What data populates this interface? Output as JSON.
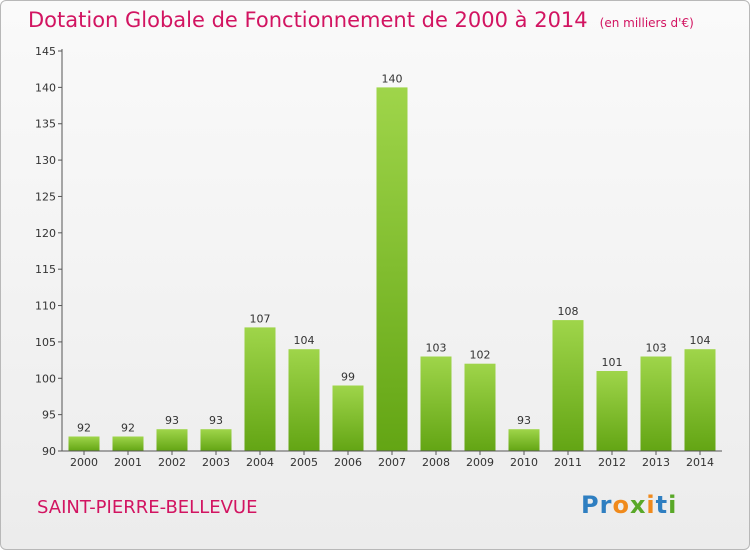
{
  "title": "Dotation Globale de Fonctionnement de 2000 à 2014",
  "unit_note": "(en milliers d'€)",
  "commune": "SAINT-PIERRE-BELLEVUE",
  "logo": "Proxiti",
  "colors": {
    "accent": "#d21461",
    "bar_light": "#9fd54a",
    "bar_dark": "#63a514",
    "logo_letters": [
      "#2f7fc1",
      "#2f7fc1",
      "#f08a1c",
      "#59a828",
      "#f08a1c",
      "#2f7fc1",
      "#59a828"
    ]
  },
  "chart_data": {
    "type": "bar",
    "title": "Dotation Globale de Fonctionnement de 2000 à 2014",
    "xlabel": "",
    "ylabel": "(en milliers d'€)",
    "categories": [
      "2000",
      "2001",
      "2002",
      "2003",
      "2004",
      "2005",
      "2006",
      "2007",
      "2008",
      "2009",
      "2010",
      "2011",
      "2012",
      "2013",
      "2014"
    ],
    "values": [
      92,
      92,
      93,
      93,
      107,
      104,
      99,
      140,
      103,
      102,
      93,
      108,
      101,
      103,
      104
    ],
    "ylim": [
      90,
      145
    ],
    "yticks": [
      90,
      95,
      100,
      105,
      110,
      115,
      120,
      125,
      130,
      135,
      140,
      145
    ],
    "grid": false
  }
}
